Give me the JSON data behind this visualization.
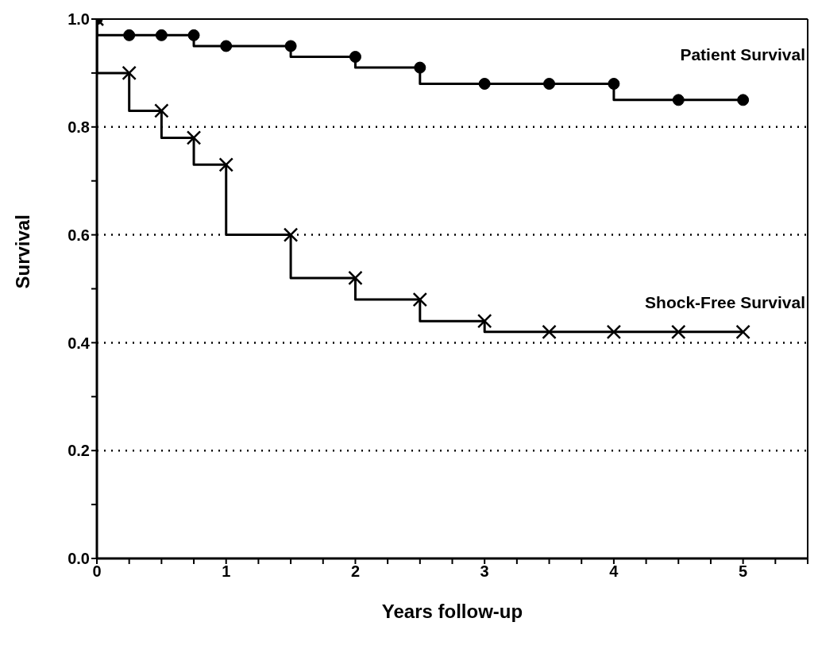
{
  "chart_data": {
    "type": "step",
    "xlabel": "Years follow-up",
    "ylabel": "Survival",
    "x": [
      0,
      0.25,
      0.5,
      0.75,
      1,
      1.5,
      2,
      2.5,
      3,
      3.5,
      4,
      4.5,
      5
    ],
    "series": [
      {
        "name": "Patient Survival",
        "color": "#000000",
        "marker": "circle",
        "values": [
          1.0,
          0.97,
          0.97,
          0.97,
          0.95,
          0.95,
          0.93,
          0.91,
          0.88,
          0.88,
          0.88,
          0.85,
          0.85
        ]
      },
      {
        "name": "Shock-Free Survival",
        "color": "#000000",
        "marker": "cross",
        "values": [
          1.0,
          0.9,
          0.83,
          0.78,
          0.73,
          0.6,
          0.52,
          0.48,
          0.44,
          0.42,
          0.42,
          0.42,
          0.42
        ]
      }
    ],
    "xlim": [
      0,
      5.5
    ],
    "xticks": [
      0,
      {
        "value": 0.25,
        "label": null
      },
      {
        "value": 0.5,
        "label": null
      },
      {
        "value": 0.75,
        "label": null
      },
      1,
      {
        "value": 1.25,
        "label": null
      },
      {
        "value": 1.5,
        "label": null
      },
      {
        "value": 1.75,
        "label": null
      },
      2,
      {
        "value": 2.25,
        "label": null
      },
      {
        "value": 2.5,
        "label": null
      },
      {
        "value": 2.75,
        "label": null
      },
      3,
      {
        "value": 3.25,
        "label": null
      },
      {
        "value": 3.5,
        "label": null
      },
      {
        "value": 3.75,
        "label": null
      },
      4,
      {
        "value": 4.25,
        "label": null
      },
      {
        "value": 4.5,
        "label": null
      },
      {
        "value": 4.75,
        "label": null
      },
      5,
      {
        "value": 5.25,
        "label": null
      },
      {
        "value": 5.5,
        "label": null
      }
    ],
    "ylim": [
      0,
      1.0
    ],
    "yticks": [
      {
        "value": 0,
        "label": "0.0"
      },
      {
        "value": 0.1,
        "label": null
      },
      {
        "value": 0.2,
        "label": "0.2"
      },
      {
        "value": 0.3,
        "label": null
      },
      {
        "value": 0.4,
        "label": "0.4"
      },
      {
        "value": 0.5,
        "label": null
      },
      {
        "value": 0.6,
        "label": "0.6"
      },
      {
        "value": 0.7,
        "label": null
      },
      {
        "value": 0.8,
        "label": "0.8"
      },
      {
        "value": 0.9,
        "label": null
      },
      {
        "value": 1.0,
        "label": "1.0"
      }
    ],
    "grid": "y",
    "line_style": "solid"
  }
}
